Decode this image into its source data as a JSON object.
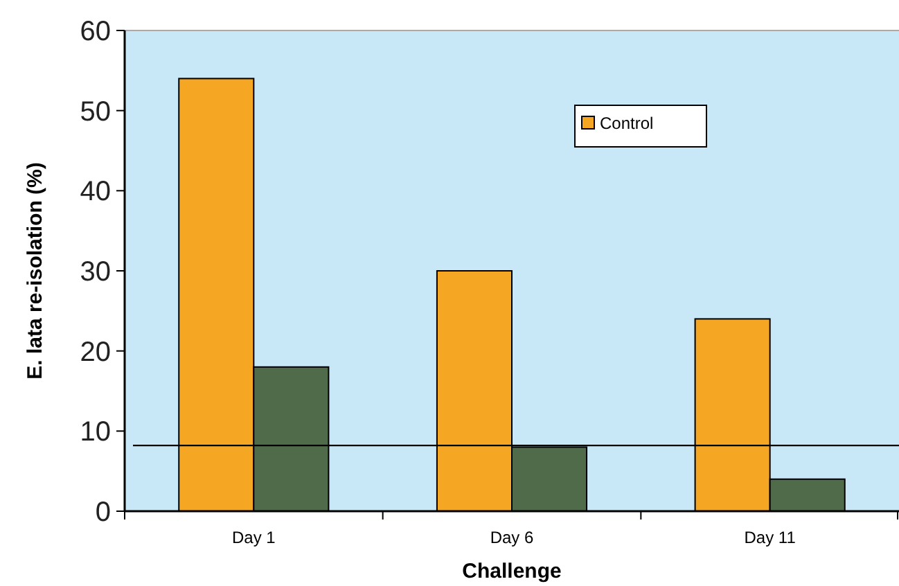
{
  "chart_data": {
    "type": "bar",
    "xlabel": "Challenge",
    "ylabel": "E. lata re-isolation (%)",
    "categories": [
      "Day 1",
      "Day 6",
      "Day 11"
    ],
    "series": [
      {
        "name": "Control",
        "color": "#f5a623",
        "values": [
          54,
          30,
          24
        ]
      },
      {
        "color": "#4f6b4a",
        "values": [
          18,
          8,
          4
        ]
      }
    ],
    "ylim": [
      0,
      60
    ],
    "yticks": [
      0,
      10,
      20,
      30,
      40,
      50,
      60
    ],
    "ref_lines": [
      {
        "axis": "y",
        "value": 8.2,
        "color": "#000000"
      }
    ],
    "legend": "top right"
  }
}
